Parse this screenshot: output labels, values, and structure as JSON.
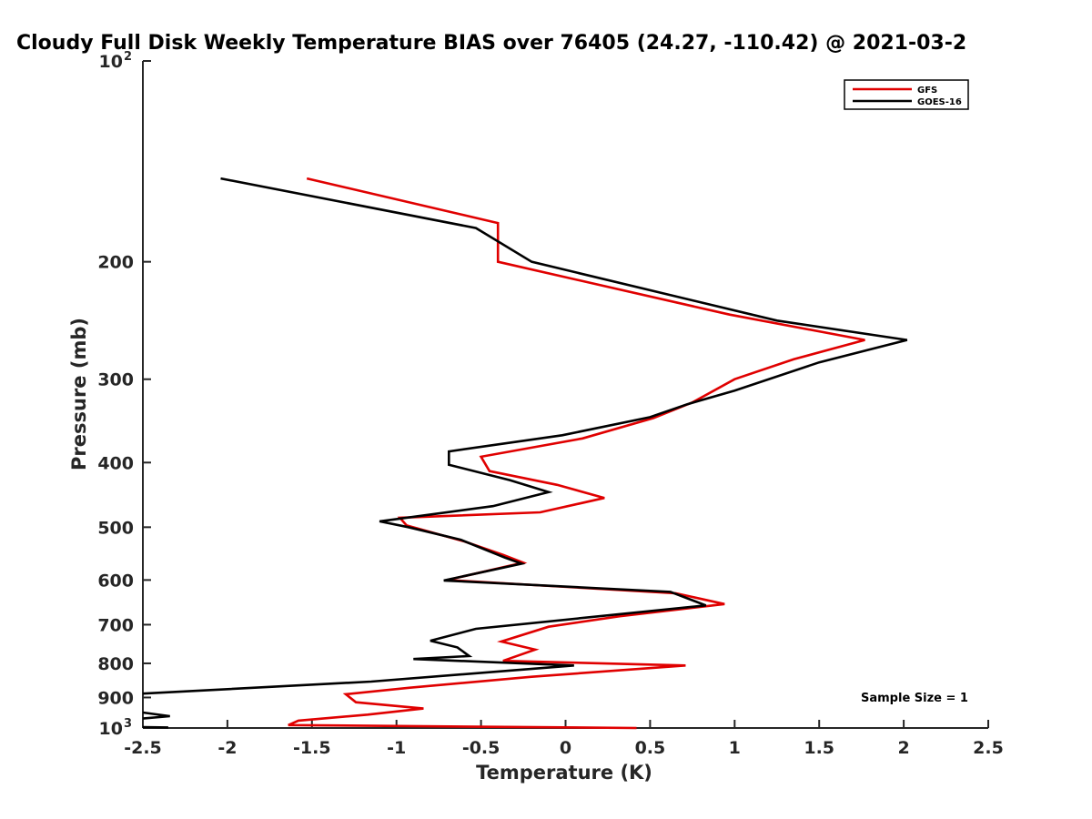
{
  "chart_data": {
    "type": "line",
    "title": "Cloudy Full Disk Weekly Temperature BIAS over 76405 (24.27, -110.42) @ 2021-03-2",
    "xlabel": "Temperature (K)",
    "ylabel": "Pressure (mb)",
    "xlim": [
      -2.5,
      2.5
    ],
    "ylim": [
      100,
      1000
    ],
    "y_scale": "log",
    "y_reversed": true,
    "grid": false,
    "legend_position": "top-right",
    "x_ticks": [
      "-2.5",
      "-2",
      "-1.5",
      "-1",
      "-0.5",
      "0",
      "0.5",
      "1",
      "1.5",
      "2",
      "2.5"
    ],
    "x_tick_values": [
      -2.5,
      -2,
      -1.5,
      -1,
      -0.5,
      0,
      0.5,
      1,
      1.5,
      2,
      2.5
    ],
    "y_ticks": [
      {
        "value": 100,
        "base": "10",
        "exp": "2"
      },
      {
        "value": 200,
        "label": "200"
      },
      {
        "value": 300,
        "label": "300"
      },
      {
        "value": 400,
        "label": "400"
      },
      {
        "value": 500,
        "label": "500"
      },
      {
        "value": 600,
        "label": "600"
      },
      {
        "value": 700,
        "label": "700"
      },
      {
        "value": 800,
        "label": "800"
      },
      {
        "value": 900,
        "label": "900"
      },
      {
        "value": 1000,
        "base": "10",
        "exp": "3"
      }
    ],
    "annotation": "Sample Size = 1",
    "series": [
      {
        "name": "GFS",
        "color": "#e00000",
        "points": [
          [
            -1.53,
            150
          ],
          [
            -0.4,
            175
          ],
          [
            -0.4,
            200
          ],
          [
            0.97,
            240
          ],
          [
            1.77,
            262
          ],
          [
            1.35,
            280
          ],
          [
            1.0,
            300
          ],
          [
            0.75,
            325
          ],
          [
            0.52,
            343
          ],
          [
            0.1,
            368
          ],
          [
            -0.5,
            392
          ],
          [
            -0.45,
            412
          ],
          [
            -0.05,
            432
          ],
          [
            0.23,
            452
          ],
          [
            -0.15,
            475
          ],
          [
            -0.98,
            484
          ],
          [
            -0.94,
            497
          ],
          [
            -0.6,
            525
          ],
          [
            -0.37,
            550
          ],
          [
            -0.25,
            565
          ],
          [
            -0.7,
            600
          ],
          [
            0.65,
            628
          ],
          [
            0.94,
            652
          ],
          [
            0.32,
            680
          ],
          [
            -0.1,
            705
          ],
          [
            -0.38,
            742
          ],
          [
            -0.18,
            763
          ],
          [
            -0.37,
            793
          ],
          [
            0.71,
            806
          ],
          [
            -0.2,
            838
          ],
          [
            -0.92,
            870
          ],
          [
            -1.3,
            890
          ],
          [
            -1.24,
            915
          ],
          [
            -0.84,
            935
          ],
          [
            -1.17,
            955
          ],
          [
            -1.58,
            975
          ],
          [
            -1.64,
            990
          ],
          [
            0.42,
            1000
          ]
        ]
      },
      {
        "name": "GOES-16",
        "color": "#000000",
        "points": [
          [
            -2.04,
            150
          ],
          [
            -0.53,
            178
          ],
          [
            -0.2,
            200
          ],
          [
            1.25,
            245
          ],
          [
            2.02,
            262
          ],
          [
            1.5,
            283
          ],
          [
            1.0,
            312
          ],
          [
            0.72,
            327
          ],
          [
            0.5,
            342
          ],
          [
            -0.02,
            364
          ],
          [
            -0.69,
            385
          ],
          [
            -0.69,
            403
          ],
          [
            -0.33,
            425
          ],
          [
            -0.1,
            443
          ],
          [
            -0.43,
            465
          ],
          [
            -1.1,
            490
          ],
          [
            -0.93,
            500
          ],
          [
            -0.62,
            522
          ],
          [
            -0.36,
            555
          ],
          [
            -0.26,
            567
          ],
          [
            -0.72,
            601
          ],
          [
            0.62,
            625
          ],
          [
            0.83,
            655
          ],
          [
            -0.53,
            710
          ],
          [
            -0.8,
            740
          ],
          [
            -0.64,
            757
          ],
          [
            -0.57,
            780
          ],
          [
            -0.9,
            788
          ],
          [
            0.05,
            806
          ],
          [
            -1.15,
            852
          ],
          [
            -2.5,
            888
          ]
        ]
      },
      {
        "name": "",
        "color": "#000000",
        "points": [
          [
            -2.5,
            948
          ],
          [
            -2.34,
            960
          ],
          [
            -2.5,
            968
          ]
        ]
      },
      {
        "name": "",
        "color": "#000000",
        "points": [
          [
            -2.5,
            997
          ],
          [
            -2.35,
            998
          ]
        ]
      }
    ]
  }
}
